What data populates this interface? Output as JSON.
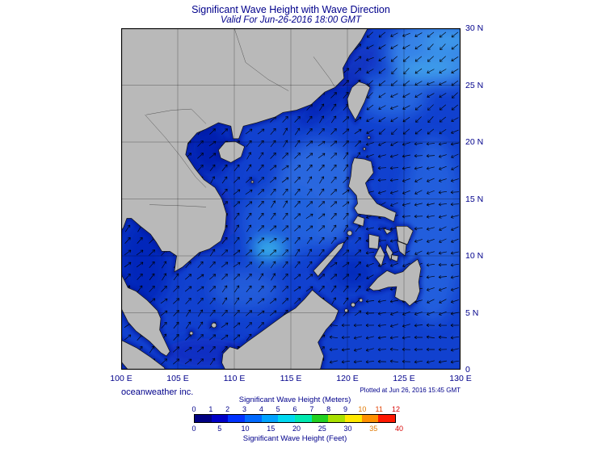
{
  "header": {
    "title": "Significant Wave Height with Wave Direction",
    "subtitle": "Valid For Jun-26-2016 18:00 GMT"
  },
  "map": {
    "lat_labels": [
      "30 N",
      "25 N",
      "20 N",
      "15 N",
      "10 N",
      "5 N",
      "0"
    ],
    "lon_labels": [
      "100 E",
      "105 E",
      "110 E",
      "115 E",
      "120 E",
      "125 E",
      "130 E"
    ]
  },
  "footer": {
    "credit": "oceanweather inc.",
    "plotted": "Plotted at Jun 26, 2016 15:45 GMT"
  },
  "legend": {
    "title_meters": "Significant Wave Height (Meters)",
    "title_feet": "Significant Wave Height (Feet)",
    "meter_ticks": [
      {
        "label": "0",
        "color": "#00008b"
      },
      {
        "label": "1",
        "color": "#00008b"
      },
      {
        "label": "2",
        "color": "#00008b"
      },
      {
        "label": "3",
        "color": "#00008b"
      },
      {
        "label": "4",
        "color": "#00008b"
      },
      {
        "label": "5",
        "color": "#00008b"
      },
      {
        "label": "6",
        "color": "#00008b"
      },
      {
        "label": "7",
        "color": "#00008b"
      },
      {
        "label": "8",
        "color": "#00008b"
      },
      {
        "label": "9",
        "color": "#00008b"
      },
      {
        "label": "10",
        "color": "#e07800"
      },
      {
        "label": "11",
        "color": "#e04000"
      },
      {
        "label": "12",
        "color": "#d80000"
      }
    ],
    "feet_ticks": [
      {
        "label": "0",
        "color": "#00008b"
      },
      {
        "label": "5",
        "color": "#00008b"
      },
      {
        "label": "10",
        "color": "#00008b"
      },
      {
        "label": "15",
        "color": "#00008b"
      },
      {
        "label": "20",
        "color": "#00008b"
      },
      {
        "label": "25",
        "color": "#00008b"
      },
      {
        "label": "30",
        "color": "#00008b"
      },
      {
        "label": "35",
        "color": "#e07800"
      },
      {
        "label": "40",
        "color": "#d80000"
      }
    ],
    "segments": [
      "#000082",
      "#0000c8",
      "#0032ff",
      "#0069ff",
      "#00a2ff",
      "#00d8f0",
      "#00e8b0",
      "#22d022",
      "#a8e000",
      "#ffe800",
      "#ff9000",
      "#ff1800"
    ]
  },
  "chart_data": {
    "type": "heatmap",
    "title": "Significant Wave Height with Wave Direction",
    "valid_time": "Jun-26-2016 18:00 GMT",
    "plotted_time": "Jun 26, 2016 15:45 GMT",
    "credit": "oceanweather inc.",
    "lon_range_deg_e": [
      100,
      130
    ],
    "lat_range_deg_n": [
      0,
      30
    ],
    "grid_interval_deg": 5,
    "colorbar_meters": [
      0,
      1,
      2,
      3,
      4,
      5,
      6,
      7,
      8,
      9,
      10,
      11,
      12
    ],
    "colorbar_feet": [
      0,
      5,
      10,
      15,
      20,
      25,
      30,
      35,
      40
    ],
    "region": "South China Sea / Philippine Sea",
    "dominant_wave_height_meters": "1-3",
    "wave_direction_south_china_sea": "toward NE",
    "wave_direction_philippine_sea": "toward W-SW"
  }
}
